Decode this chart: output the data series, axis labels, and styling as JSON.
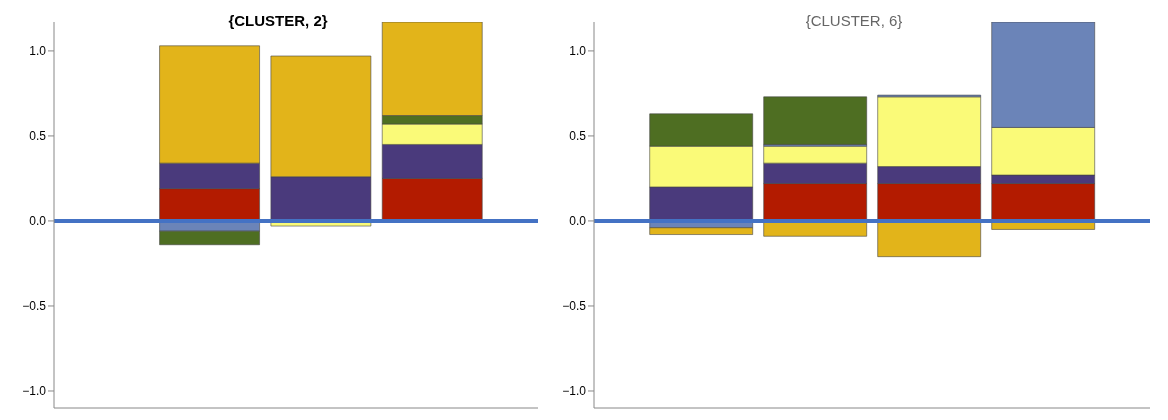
{
  "chart_data": [
    {
      "type": "bar",
      "title": "{CLUSTER, 2}",
      "stacked": true,
      "tick_labels": "y",
      "categories": [
        null,
        null,
        null
      ],
      "series": [
        {
          "color": "#b31b00",
          "values": [
            0.19,
            null,
            0.25
          ]
        },
        {
          "color": "#4a3a7c",
          "values": [
            0.15,
            0.26,
            0.2
          ]
        },
        {
          "color": "#fafa78",
          "values": [
            null,
            -0.03,
            0.12
          ]
        },
        {
          "color": "#6b84b8",
          "values": [
            -0.06,
            null,
            null
          ]
        },
        {
          "color": "#4e6e22",
          "values": [
            -0.08,
            null,
            0.05
          ]
        },
        {
          "color": "#e2b41a",
          "values": [
            0.69,
            0.71,
            0.55
          ]
        }
      ],
      "ylim": [
        -1.1,
        1.17
      ],
      "yticks": [
        {
          "value": 1,
          "label": "1.0"
        },
        0.5,
        {
          "value": 0,
          "label": "0.0"
        },
        {
          "value": -0.5,
          "label": "−0.5"
        },
        {
          "value": -1,
          "label": "−1.0"
        }
      ],
      "ref_lines": [
        {
          "axis": "y",
          "value": 0,
          "color": "#4472c4"
        }
      ]
    },
    {
      "type": "bar",
      "title": "{CLUSTER, 6}",
      "stacked": true,
      "tick_labels": "y",
      "categories": [
        null,
        null,
        null,
        null
      ],
      "series": [
        {
          "color": "#b31b00",
          "values": [
            null,
            0.22,
            0.22,
            0.22
          ]
        },
        {
          "color": "#4a3a7c",
          "values": [
            0.2,
            0.12,
            0.1,
            0.05
          ]
        },
        {
          "color": "#fafa78",
          "values": [
            0.24,
            0.1,
            0.41,
            0.28
          ]
        },
        {
          "color": "#6b84b8",
          "values": [
            -0.04,
            0.01,
            0.01,
            0.62
          ]
        },
        {
          "color": "#4e6e22",
          "values": [
            0.19,
            0.28,
            null,
            null
          ]
        },
        {
          "color": "#e2b41a",
          "values": [
            -0.04,
            -0.09,
            -0.21,
            -0.05
          ]
        }
      ],
      "ylim": [
        -1.1,
        1.17
      ],
      "yticks": [
        {
          "value": 1,
          "label": "1.0"
        },
        0.5,
        {
          "value": 0,
          "label": "0.0"
        },
        {
          "value": -0.5,
          "label": "−0.5"
        },
        {
          "value": -1,
          "label": "−1.0"
        }
      ],
      "ref_lines": [
        {
          "axis": "y",
          "value": 0,
          "color": "#4472c4"
        }
      ]
    }
  ]
}
